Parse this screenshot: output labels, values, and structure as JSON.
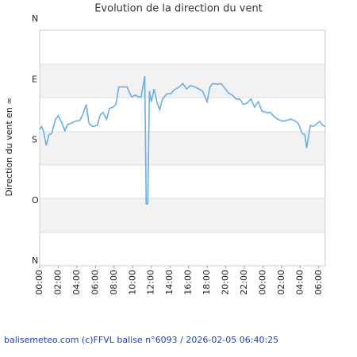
{
  "chart_data": {
    "type": "line",
    "title": "Evolution de la direction du vent",
    "y_label": "Direction du vent en ∞",
    "footer": "balisemeteo.com (c)FFVL balise n°6093 / 2026-02-05 06:40:25",
    "x": [
      0.0,
      0.2,
      0.4,
      0.7,
      1.0,
      1.3,
      1.7,
      2.0,
      2.4,
      2.7,
      3.0,
      3.4,
      3.8,
      4.3,
      4.6,
      5.0,
      5.3,
      5.7,
      6.2,
      6.5,
      6.8,
      7.2,
      7.5,
      7.9,
      8.2,
      8.5,
      9.0,
      9.4,
      9.7,
      9.9,
      10.3,
      10.6,
      10.9,
      11.3,
      11.45,
      11.62,
      11.8,
      12.0,
      12.3,
      12.6,
      12.9,
      13.2,
      13.7,
      14.1,
      14.5,
      15.0,
      15.4,
      15.8,
      16.2,
      16.7,
      17.1,
      17.5,
      18.0,
      18.3,
      18.6,
      19.1,
      19.5,
      19.8,
      20.3,
      20.7,
      21.1,
      21.5,
      21.9,
      22.3,
      22.7,
      23.1,
      23.5,
      23.9,
      24.4,
      24.8,
      25.2,
      25.6,
      26.1,
      26.5,
      27.0,
      27.4,
      27.8,
      28.2,
      28.5,
      28.7,
      29.1,
      29.4,
      29.7,
      30.1,
      30.4,
      30.7
    ],
    "series": [
      {
        "name": "Direction",
        "color": "#6aaee8",
        "values": [
          164,
          160,
          166,
          188,
          172,
          170,
          149,
          144,
          155,
          166,
          157,
          155,
          152,
          151,
          143,
          127,
          155,
          160,
          158,
          143,
          139,
          149,
          133,
          131,
          127,
          101,
          101,
          101,
          111,
          116,
          113,
          116,
          116,
          85,
          275,
          275,
          107,
          123,
          104,
          123,
          135,
          119,
          111,
          111,
          105,
          101,
          96,
          104,
          99,
          101,
          104,
          107,
          123,
          101,
          96,
          97,
          96,
          101,
          110,
          113,
          119,
          119,
          127,
          125,
          119,
          131,
          123,
          137,
          139,
          139,
          145,
          149,
          152,
          151,
          149,
          151,
          155,
          170,
          172,
          192,
          158,
          160,
          157,
          152,
          158,
          160
        ]
      }
    ],
    "xlim": [
      0,
      30.7
    ],
    "xticks": [
      {
        "value": 0,
        "label": "00:00"
      },
      {
        "value": 2,
        "label": "02:00"
      },
      {
        "value": 4,
        "label": "04:00"
      },
      {
        "value": 6,
        "label": "06:00"
      },
      {
        "value": 8,
        "label": "08:00"
      },
      {
        "value": 10,
        "label": "10:00"
      },
      {
        "value": 12,
        "label": "12:00"
      },
      {
        "value": 14,
        "label": "14:00"
      },
      {
        "value": 16,
        "label": "16:00"
      },
      {
        "value": 18,
        "label": "18:00"
      },
      {
        "value": 20,
        "label": "20:00"
      },
      {
        "value": 22,
        "label": "22:00"
      },
      {
        "value": 24,
        "label": "00:00"
      },
      {
        "value": 26,
        "label": "02:00"
      },
      {
        "value": 28,
        "label": "04:00"
      },
      {
        "value": 30,
        "label": "06:00"
      }
    ],
    "ylim": [
      360,
      0
    ],
    "yticks": [
      {
        "value": 0,
        "label": "N"
      },
      {
        "value": 90,
        "label": "E"
      },
      {
        "value": 180,
        "label": "S"
      },
      {
        "value": 270,
        "label": "O"
      },
      {
        "value": 360,
        "label": "N"
      }
    ]
  }
}
